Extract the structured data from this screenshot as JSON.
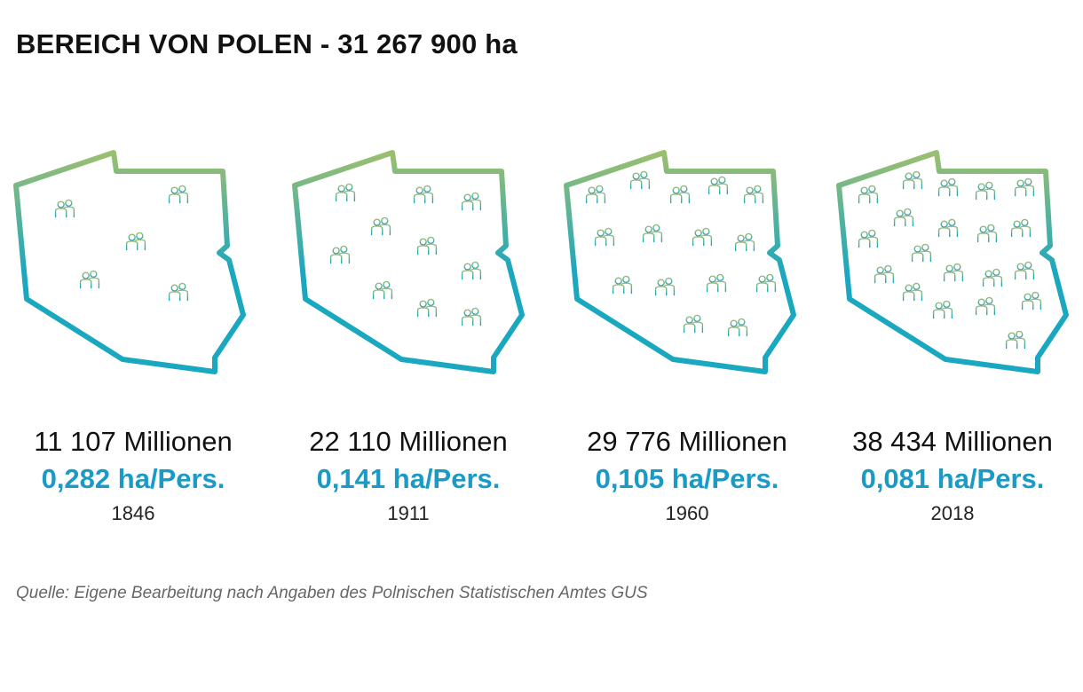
{
  "title": "BEREICH VON POLEN - 31 267 900 ha",
  "colors": {
    "gradient_top": "#9cbf6f",
    "gradient_bottom": "#1aa7c0",
    "icon_top": "#9cbf6f",
    "icon_bottom": "#1aa2c2",
    "accent_text": "#1a9ac4"
  },
  "icon": "people-pair-icon",
  "panels": [
    {
      "population": "11 107 Millionen",
      "area_per_person": "0,282 ha/Pers.",
      "year": "1846",
      "icon_count": 5
    },
    {
      "population": "22 110 Millionen",
      "area_per_person": "0,141 ha/Pers.",
      "year": "1911",
      "icon_count": 10
    },
    {
      "population": "29 776 Millionen",
      "area_per_person": "0,105 ha/Pers.",
      "year": "1960",
      "icon_count": 15
    },
    {
      "population": "38 434 Millionen",
      "area_per_person": "0,081 ha/Pers.",
      "year": "2018",
      "icon_count": 20
    }
  ],
  "source": "Quelle: Eigene Bearbeitung nach Angaben des Polnischen Statistischen Amtes GUS"
}
